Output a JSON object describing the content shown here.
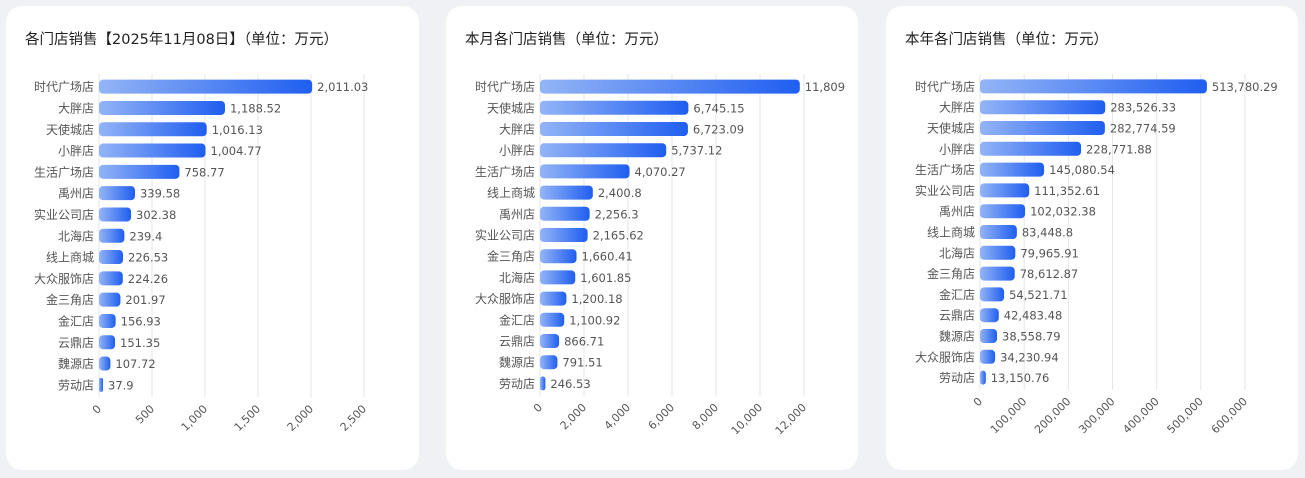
{
  "colors": {
    "bar_start": "#93b4f6",
    "bar_end": "#1f5ef0",
    "grid": "#e6e6e6",
    "text": "#555555",
    "title": "#1f1f1f"
  },
  "panels": [
    {
      "title": "各门店销售【2025年11月08日】（单位：万元）"
    },
    {
      "title": "本月各门店销售（单位：万元）"
    },
    {
      "title": "本年各门店销售（单位：万元）"
    }
  ],
  "chart_data": [
    {
      "type": "bar",
      "orientation": "horizontal",
      "title": "各门店销售【2025年11月08日】（单位：万元）",
      "categories": [
        "时代广场店",
        "大胖店",
        "天使城店",
        "小胖店",
        "生活广场店",
        "禹州店",
        "实业公司店",
        "北海店",
        "线上商城",
        "大众服饰店",
        "金三角店",
        "金汇店",
        "云鼎店",
        "魏源店",
        "劳动店"
      ],
      "values": [
        2011.03,
        1188.52,
        1016.13,
        1004.77,
        758.77,
        339.58,
        302.38,
        239.4,
        226.53,
        224.26,
        201.97,
        156.93,
        151.35,
        107.72,
        37.9
      ],
      "labels": [
        "2,011.03",
        "1,188.52",
        "1,016.13",
        "1,004.77",
        "758.77",
        "339.58",
        "302.38",
        "239.4",
        "226.53",
        "224.26",
        "201.97",
        "156.93",
        "151.35",
        "107.72",
        "37.9"
      ],
      "xlim": [
        0,
        2500
      ],
      "xticks": [
        "0",
        "500",
        "1,000",
        "1,500",
        "2,000",
        "2,500"
      ],
      "grid": true
    },
    {
      "type": "bar",
      "orientation": "horizontal",
      "title": "本月各门店销售（单位：万元）",
      "categories": [
        "时代广场店",
        "天使城店",
        "大胖店",
        "小胖店",
        "生活广场店",
        "线上商城",
        "禹州店",
        "实业公司店",
        "金三角店",
        "北海店",
        "大众服饰店",
        "金汇店",
        "云鼎店",
        "魏源店",
        "劳动店"
      ],
      "values": [
        11809,
        6745.15,
        6723.09,
        5737.12,
        4070.27,
        2400.8,
        2256.3,
        2165.62,
        1660.41,
        1601.85,
        1200.18,
        1100.92,
        866.71,
        791.51,
        246.53
      ],
      "labels": [
        "11,809",
        "6,745.15",
        "6,723.09",
        "5,737.12",
        "4,070.27",
        "2,400.8",
        "2,256.3",
        "2,165.62",
        "1,660.41",
        "1,601.85",
        "1,200.18",
        "1,100.92",
        "866.71",
        "791.51",
        "246.53"
      ],
      "xlim": [
        0,
        12000
      ],
      "xticks": [
        "0",
        "2,000",
        "4,000",
        "6,000",
        "8,000",
        "10,000",
        "12,000"
      ],
      "grid": true
    },
    {
      "type": "bar",
      "orientation": "horizontal",
      "title": "本年各门店销售（单位：万元）",
      "categories": [
        "时代广场店",
        "大胖店",
        "天使城店",
        "小胖店",
        "生活广场店",
        "实业公司店",
        "禹州店",
        "线上商城",
        "北海店",
        "金三角店",
        "金汇店",
        "云鼎店",
        "魏源店",
        "大众服饰店",
        "劳动店"
      ],
      "values": [
        513780.29,
        283526.33,
        282774.59,
        228771.88,
        145080.54,
        111352.61,
        102032.38,
        83448.8,
        79965.91,
        78612.87,
        54521.71,
        42483.48,
        38558.79,
        34230.94,
        13150.76
      ],
      "labels": [
        "513,780.29",
        "283,526.33",
        "282,774.59",
        "228,771.88",
        "145,080.54",
        "111,352.61",
        "102,032.38",
        "83,448.8",
        "79,965.91",
        "78,612.87",
        "54,521.71",
        "42,483.48",
        "38,558.79",
        "34,230.94",
        "13,150.76"
      ],
      "xlim": [
        0,
        600000
      ],
      "xticks": [
        "0",
        "100,000",
        "200,000",
        "300,000",
        "400,000",
        "500,000",
        "600,000"
      ],
      "grid": true
    }
  ]
}
